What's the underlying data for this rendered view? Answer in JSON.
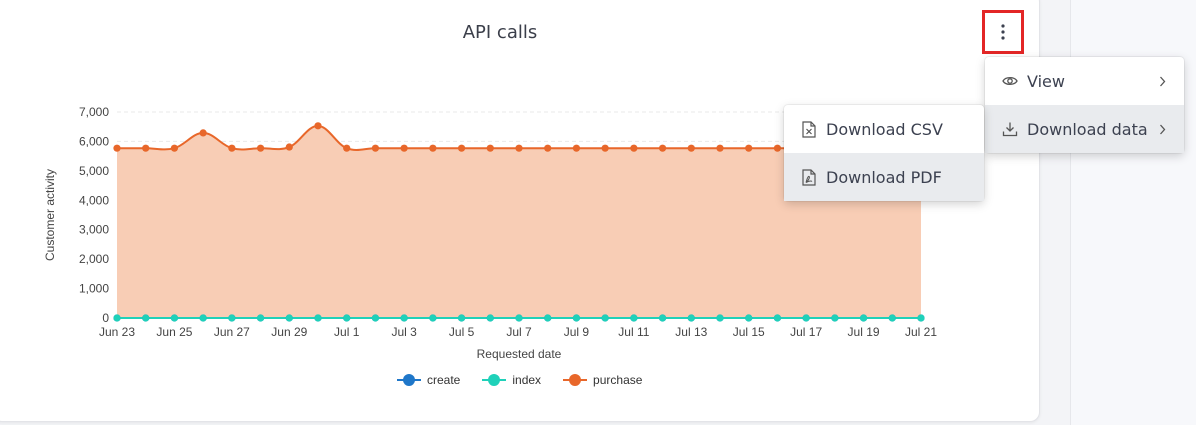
{
  "card": {
    "title": "API calls"
  },
  "menu": {
    "items": [
      {
        "label": "View",
        "icon": "eye-icon"
      },
      {
        "label": "Download data",
        "icon": "download-icon"
      }
    ]
  },
  "submenu": {
    "items": [
      {
        "label": "Download CSV",
        "icon": "csv-file-icon"
      },
      {
        "label": "Download PDF",
        "icon": "pdf-file-icon"
      }
    ]
  },
  "colors": {
    "create": "#1f77c9",
    "index": "#1fd1b9",
    "purchase": "#e8672a",
    "purchase_fill": "#f8cdb5",
    "highlight": "#e32626"
  },
  "chart_data": {
    "type": "area",
    "xlabel": "Requested date",
    "ylabel": "Customer activity",
    "ylim": [
      0,
      7000
    ],
    "yticks": [
      0,
      1000,
      2000,
      3000,
      4000,
      5000,
      6000,
      7000
    ],
    "ytick_labels": [
      "0",
      "1,000",
      "2,000",
      "3,000",
      "4,000",
      "5,000",
      "6,000",
      "7,000"
    ],
    "x": [
      "Jun 23",
      "Jun 24",
      "Jun 25",
      "Jun 26",
      "Jun 27",
      "Jun 28",
      "Jun 29",
      "Jun 30",
      "Jul 1",
      "Jul 2",
      "Jul 3",
      "Jul 4",
      "Jul 5",
      "Jul 6",
      "Jul 7",
      "Jul 8",
      "Jul 9",
      "Jul 10",
      "Jul 11",
      "Jul 12",
      "Jul 13",
      "Jul 14",
      "Jul 15",
      "Jul 16",
      "Jul 17",
      "Jul 18",
      "Jul 19",
      "Jul 20",
      "Jul 21"
    ],
    "xtick_labels": [
      "Jun 23",
      "Jun 25",
      "Jun 27",
      "Jun 29",
      "Jul 1",
      "Jul 3",
      "Jul 5",
      "Jul 7",
      "Jul 9",
      "Jul 11",
      "Jul 13",
      "Jul 15",
      "Jul 17",
      "Jul 19",
      "Jul 21"
    ],
    "series": [
      {
        "name": "create",
        "values": [
          0,
          0,
          0,
          0,
          0,
          0,
          0,
          0,
          0,
          0,
          0,
          0,
          0,
          0,
          0,
          0,
          0,
          0,
          0,
          0,
          0,
          0,
          0,
          0,
          0,
          0,
          0,
          0,
          0
        ]
      },
      {
        "name": "index",
        "values": [
          0,
          0,
          0,
          0,
          0,
          0,
          0,
          0,
          0,
          0,
          0,
          0,
          0,
          0,
          0,
          0,
          0,
          0,
          0,
          0,
          0,
          0,
          0,
          0,
          0,
          0,
          0,
          0,
          0
        ]
      },
      {
        "name": "purchase",
        "values": [
          5770,
          5770,
          5770,
          6290,
          5770,
          5770,
          5810,
          6530,
          5770,
          5770,
          5770,
          5770,
          5770,
          5770,
          5770,
          5770,
          5770,
          5770,
          5770,
          5770,
          5770,
          5770,
          5770,
          5770,
          5770,
          5770,
          5770,
          5770,
          5770
        ]
      }
    ],
    "legend": [
      "create",
      "index",
      "purchase"
    ],
    "legend_position": "bottom",
    "grid": true
  }
}
